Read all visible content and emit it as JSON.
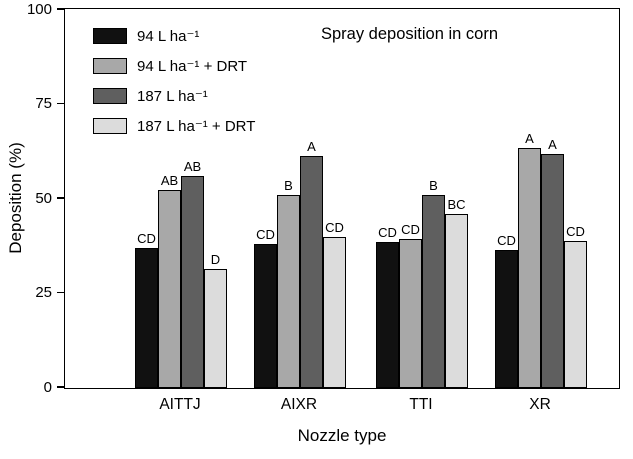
{
  "chart_data": {
    "type": "bar",
    "title": "Spray deposition in corn",
    "xlabel": "Nozzle type",
    "ylabel": "Deposition (%)",
    "ylim": [
      0,
      100
    ],
    "yticks": [
      0,
      25,
      50,
      75,
      100
    ],
    "grid": false,
    "legend_position": "top-left-inside",
    "categories": [
      "AITTJ",
      "AIXR",
      "TTI",
      "XR"
    ],
    "series": [
      {
        "name": "94 L ha⁻¹",
        "color": "#111111",
        "values": [
          37,
          38,
          38.5,
          36.5
        ],
        "letters": [
          "CD",
          "CD",
          "CD",
          "CD"
        ]
      },
      {
        "name": "94 L ha⁻¹ + DRT",
        "color": "#a8a8a8",
        "values": [
          52.5,
          51,
          39.5,
          63.5
        ],
        "letters": [
          "AB",
          "B",
          "CD",
          "A"
        ]
      },
      {
        "name": "187 L ha⁻¹",
        "color": "#5f5f5f",
        "values": [
          56,
          61.5,
          51,
          62
        ],
        "letters": [
          "AB",
          "A",
          "B",
          "A"
        ]
      },
      {
        "name": "187 L ha⁻¹ + DRT",
        "color": "#dcdcdc",
        "values": [
          31.5,
          40,
          46,
          39
        ],
        "letters": [
          "D",
          "CD",
          "BC",
          "CD"
        ]
      }
    ]
  }
}
